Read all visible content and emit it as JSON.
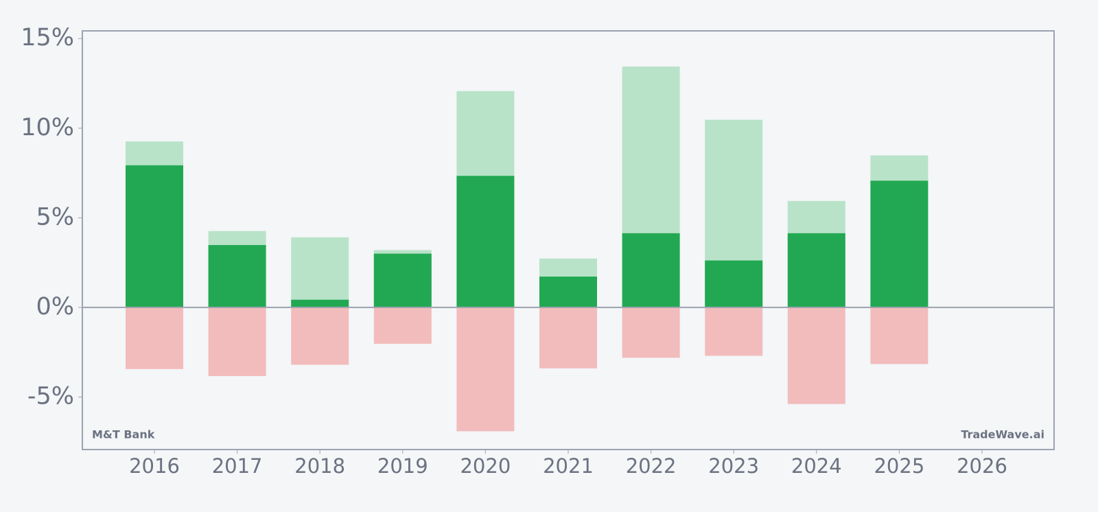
{
  "chart_data": {
    "type": "bar",
    "categories": [
      "2016",
      "2017",
      "2018",
      "2019",
      "2020",
      "2021",
      "2022",
      "2023",
      "2024",
      "2025",
      "2026"
    ],
    "series": [
      {
        "color": "#b8e3c8",
        "values": [
          9.26,
          4.26,
          3.91,
          3.2,
          12.07,
          2.73,
          13.44,
          10.47,
          5.94,
          8.48,
          null
        ]
      },
      {
        "color": "#22a852",
        "values": [
          7.93,
          3.48,
          0.43,
          3.0,
          7.34,
          1.72,
          4.14,
          2.62,
          4.14,
          7.07,
          null
        ]
      },
      {
        "color": "#f2bcbc",
        "values": [
          -3.44,
          -3.83,
          -3.2,
          -2.03,
          -6.91,
          -3.4,
          -2.81,
          -2.7,
          -5.39,
          -3.16,
          null
        ]
      }
    ],
    "ylim": [
      -7.93,
      15.43
    ],
    "yticks": [
      {
        "value": -5,
        "label": "-5%"
      },
      {
        "value": 0,
        "label": "0%"
      },
      {
        "value": 5,
        "label": "5%"
      },
      {
        "value": 10,
        "label": "10%"
      },
      {
        "value": 15,
        "label": "15%"
      }
    ],
    "annotations": [
      "M&T Bank",
      "TradeWave.ai"
    ]
  }
}
